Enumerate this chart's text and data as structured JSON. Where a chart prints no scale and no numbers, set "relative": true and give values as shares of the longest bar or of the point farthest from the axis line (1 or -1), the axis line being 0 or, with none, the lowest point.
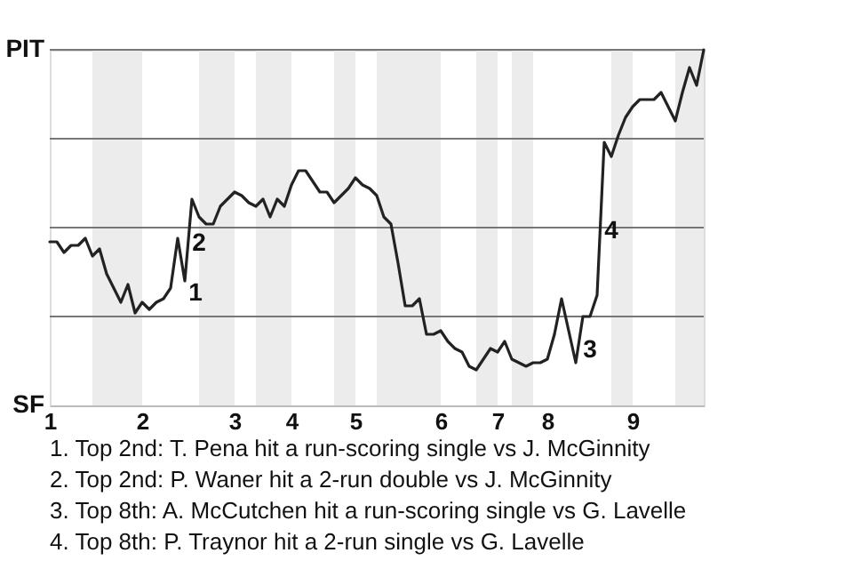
{
  "chart_data": {
    "type": "line",
    "categories": [
      "1",
      null,
      null,
      null,
      null,
      null,
      null,
      null,
      null,
      null,
      null,
      null,
      null,
      "2",
      null,
      null,
      null,
      null,
      null,
      null,
      null,
      null,
      null,
      null,
      null,
      null,
      "3",
      null,
      null,
      null,
      null,
      null,
      null,
      null,
      "4",
      null,
      null,
      null,
      null,
      null,
      null,
      null,
      null,
      "5",
      null,
      null,
      null,
      null,
      null,
      null,
      null,
      null,
      null,
      null,
      null,
      "6",
      null,
      null,
      null,
      null,
      null,
      null,
      null,
      "7",
      null,
      null,
      null,
      null,
      null,
      null,
      "8",
      null,
      null,
      null,
      null,
      null,
      null,
      null,
      null,
      null,
      null,
      null,
      "9",
      null,
      null,
      null,
      null,
      null,
      null,
      null,
      null,
      null,
      null
    ],
    "series": [
      {
        "color": "#222222",
        "values": [
          0.46,
          0.46,
          0.43,
          0.45,
          0.45,
          0.47,
          0.42,
          0.44,
          0.37,
          0.33,
          0.29,
          0.34,
          0.26,
          0.29,
          0.27,
          0.29,
          0.3,
          0.33,
          0.47,
          0.35,
          0.58,
          0.53,
          0.51,
          0.51,
          0.56,
          0.58,
          0.6,
          0.59,
          0.57,
          0.56,
          0.58,
          0.53,
          0.58,
          0.56,
          0.62,
          0.66,
          0.66,
          0.63,
          0.6,
          0.6,
          0.57,
          0.59,
          0.61,
          0.64,
          0.62,
          0.61,
          0.59,
          0.53,
          0.51,
          0.4,
          0.28,
          0.28,
          0.3,
          0.2,
          0.2,
          0.21,
          0.18,
          0.16,
          0.15,
          0.11,
          0.1,
          0.13,
          0.16,
          0.15,
          0.18,
          0.13,
          0.12,
          0.11,
          0.12,
          0.12,
          0.13,
          0.2,
          0.3,
          0.21,
          0.12,
          0.25,
          0.25,
          0.31,
          0.74,
          0.7,
          0.76,
          0.81,
          0.84,
          0.86,
          0.86,
          0.86,
          0.88,
          0.84,
          0.8,
          0.88,
          0.95,
          0.9,
          1.0
        ]
      }
    ],
    "relative": true,
    "marker": "none",
    "line_style": "solid",
    "ref_lines": [
      {
        "axis": "y",
        "value": 0.25,
        "color": "#777777"
      },
      {
        "axis": "y",
        "value": 0.5,
        "color": "#777777"
      },
      {
        "axis": "y",
        "value": 0.75,
        "color": "#777777"
      },
      {
        "axis": "y",
        "value": 1.0,
        "color": "#777777"
      }
    ],
    "annotations": [
      "PIT",
      "SF",
      "1",
      "2",
      "3",
      "4",
      "1. Top 2nd: T. Pena hit a run-scoring single vs J. McGinnity",
      "2. Top 2nd: P. Waner hit a 2-run double vs J. McGinnity",
      "3. Top 8th: A. McCutchen hit a run-scoring single vs G. Lavelle",
      "4. Top 8th: P. Traynor hit a 2-run single vs G. Lavelle"
    ]
  }
}
